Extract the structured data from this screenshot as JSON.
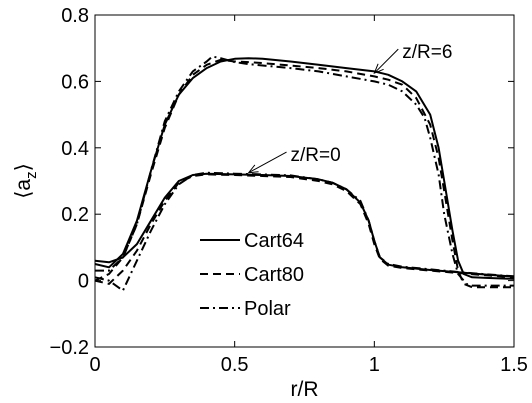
{
  "chart_data": {
    "type": "line",
    "xlabel": "r/R",
    "ylabel": "⟨a",
    "ylabel_sub": "z",
    "ylabel_close": "⟩",
    "xlim": [
      0,
      1.5
    ],
    "ylim": [
      -0.2,
      0.8
    ],
    "xticks": [
      0,
      0.5,
      1,
      1.5
    ],
    "xtick_labels": [
      "0",
      "0.5",
      "1",
      "1.5"
    ],
    "yticks": [
      -0.2,
      0,
      0.2,
      0.4,
      0.6,
      0.8
    ],
    "ytick_labels": [
      "−0.2",
      "0",
      "0.2",
      "0.4",
      "0.6",
      "0.8"
    ],
    "grid": false,
    "legend_placement": "lower-center",
    "legend": [
      {
        "label": "Cart64",
        "style": "solid"
      },
      {
        "label": "Cart80",
        "style": "dashed"
      },
      {
        "label": "Polar",
        "style": "dashdot"
      }
    ],
    "annotations": [
      {
        "text": "z/R=6",
        "arrow_to": [
          1.0,
          0.625
        ],
        "text_at": [
          1.1,
          0.67
        ]
      },
      {
        "text": "z/R=0",
        "arrow_to": [
          0.55,
          0.325
        ],
        "text_at": [
          0.7,
          0.36
        ]
      }
    ],
    "series": [
      {
        "group": "z/R=0",
        "style": "solid",
        "x": [
          0,
          0.05,
          0.1,
          0.15,
          0.2,
          0.25,
          0.3,
          0.35,
          0.4,
          0.5,
          0.6,
          0.7,
          0.8,
          0.85,
          0.9,
          0.95,
          0.98,
          1.0,
          1.02,
          1.05,
          1.1,
          1.2,
          1.3,
          1.4,
          1.5
        ],
        "y": [
          0.06,
          0.055,
          0.07,
          0.11,
          0.18,
          0.25,
          0.3,
          0.318,
          0.322,
          0.32,
          0.318,
          0.315,
          0.305,
          0.295,
          0.275,
          0.235,
          0.18,
          0.12,
          0.07,
          0.048,
          0.04,
          0.032,
          0.025,
          0.018,
          0.012
        ]
      },
      {
        "group": "z/R=0",
        "style": "dashed",
        "x": [
          0,
          0.05,
          0.1,
          0.15,
          0.2,
          0.25,
          0.3,
          0.35,
          0.4,
          0.5,
          0.6,
          0.7,
          0.8,
          0.85,
          0.9,
          0.95,
          0.98,
          1.0,
          1.02,
          1.05,
          1.1,
          1.2,
          1.3,
          1.4,
          1.5
        ],
        "y": [
          0.0,
          -0.01,
          0.03,
          0.09,
          0.17,
          0.24,
          0.295,
          0.315,
          0.32,
          0.318,
          0.315,
          0.312,
          0.3,
          0.29,
          0.27,
          0.23,
          0.17,
          0.11,
          0.065,
          0.045,
          0.038,
          0.03,
          0.023,
          0.016,
          0.01
        ]
      },
      {
        "group": "z/R=0",
        "style": "dashdot",
        "x": [
          0,
          0.05,
          0.1,
          0.15,
          0.2,
          0.25,
          0.3,
          0.35,
          0.4,
          0.5,
          0.6,
          0.7,
          0.8,
          0.85,
          0.9,
          0.95,
          0.98,
          1.0,
          1.02,
          1.05,
          1.1,
          1.2,
          1.3,
          1.4,
          1.5
        ],
        "y": [
          0.01,
          0.0,
          -0.03,
          0.06,
          0.15,
          0.23,
          0.29,
          0.318,
          0.325,
          0.322,
          0.32,
          0.317,
          0.305,
          0.295,
          0.275,
          0.24,
          0.18,
          0.12,
          0.07,
          0.05,
          0.042,
          0.034,
          0.026,
          0.019,
          0.013
        ]
      },
      {
        "group": "z/R=6",
        "style": "solid",
        "x": [
          0,
          0.05,
          0.1,
          0.15,
          0.2,
          0.25,
          0.3,
          0.35,
          0.4,
          0.45,
          0.5,
          0.55,
          0.6,
          0.7,
          0.8,
          0.9,
          1.0,
          1.05,
          1.1,
          1.15,
          1.2,
          1.23,
          1.25,
          1.28,
          1.3,
          1.32,
          1.35,
          1.4,
          1.5
        ],
        "y": [
          0.05,
          0.04,
          0.08,
          0.18,
          0.33,
          0.47,
          0.56,
          0.61,
          0.64,
          0.66,
          0.668,
          0.67,
          0.668,
          0.66,
          0.65,
          0.64,
          0.63,
          0.62,
          0.6,
          0.57,
          0.5,
          0.4,
          0.3,
          0.15,
          0.06,
          0.02,
          0.01,
          0.008,
          0.005
        ]
      },
      {
        "group": "z/R=6",
        "style": "dashed",
        "x": [
          0,
          0.05,
          0.1,
          0.15,
          0.2,
          0.25,
          0.3,
          0.35,
          0.4,
          0.45,
          0.5,
          0.55,
          0.6,
          0.7,
          0.8,
          0.9,
          1.0,
          1.05,
          1.1,
          1.15,
          1.2,
          1.23,
          1.25,
          1.28,
          1.3,
          1.32,
          1.35,
          1.4,
          1.5
        ],
        "y": [
          0.0,
          0.02,
          0.07,
          0.17,
          0.32,
          0.46,
          0.56,
          0.62,
          0.65,
          0.665,
          0.66,
          0.658,
          0.655,
          0.648,
          0.64,
          0.63,
          0.615,
          0.605,
          0.59,
          0.55,
          0.47,
          0.37,
          0.27,
          0.12,
          0.03,
          -0.01,
          -0.02,
          -0.02,
          -0.02
        ]
      },
      {
        "group": "z/R=6",
        "style": "dashdot",
        "x": [
          0,
          0.05,
          0.1,
          0.15,
          0.2,
          0.25,
          0.3,
          0.35,
          0.4,
          0.42,
          0.45,
          0.5,
          0.55,
          0.6,
          0.7,
          0.8,
          0.9,
          1.0,
          1.05,
          1.1,
          1.15,
          1.18,
          1.2,
          1.23,
          1.25,
          1.28,
          1.3,
          1.33,
          1.35,
          1.4,
          1.5
        ],
        "y": [
          0.03,
          0.03,
          0.07,
          0.17,
          0.33,
          0.48,
          0.57,
          0.63,
          0.66,
          0.675,
          0.67,
          0.658,
          0.652,
          0.648,
          0.64,
          0.63,
          0.615,
          0.6,
          0.59,
          0.57,
          0.53,
          0.49,
          0.43,
          0.32,
          0.2,
          0.08,
          0.02,
          -0.01,
          -0.015,
          -0.015,
          -0.015
        ]
      }
    ]
  }
}
